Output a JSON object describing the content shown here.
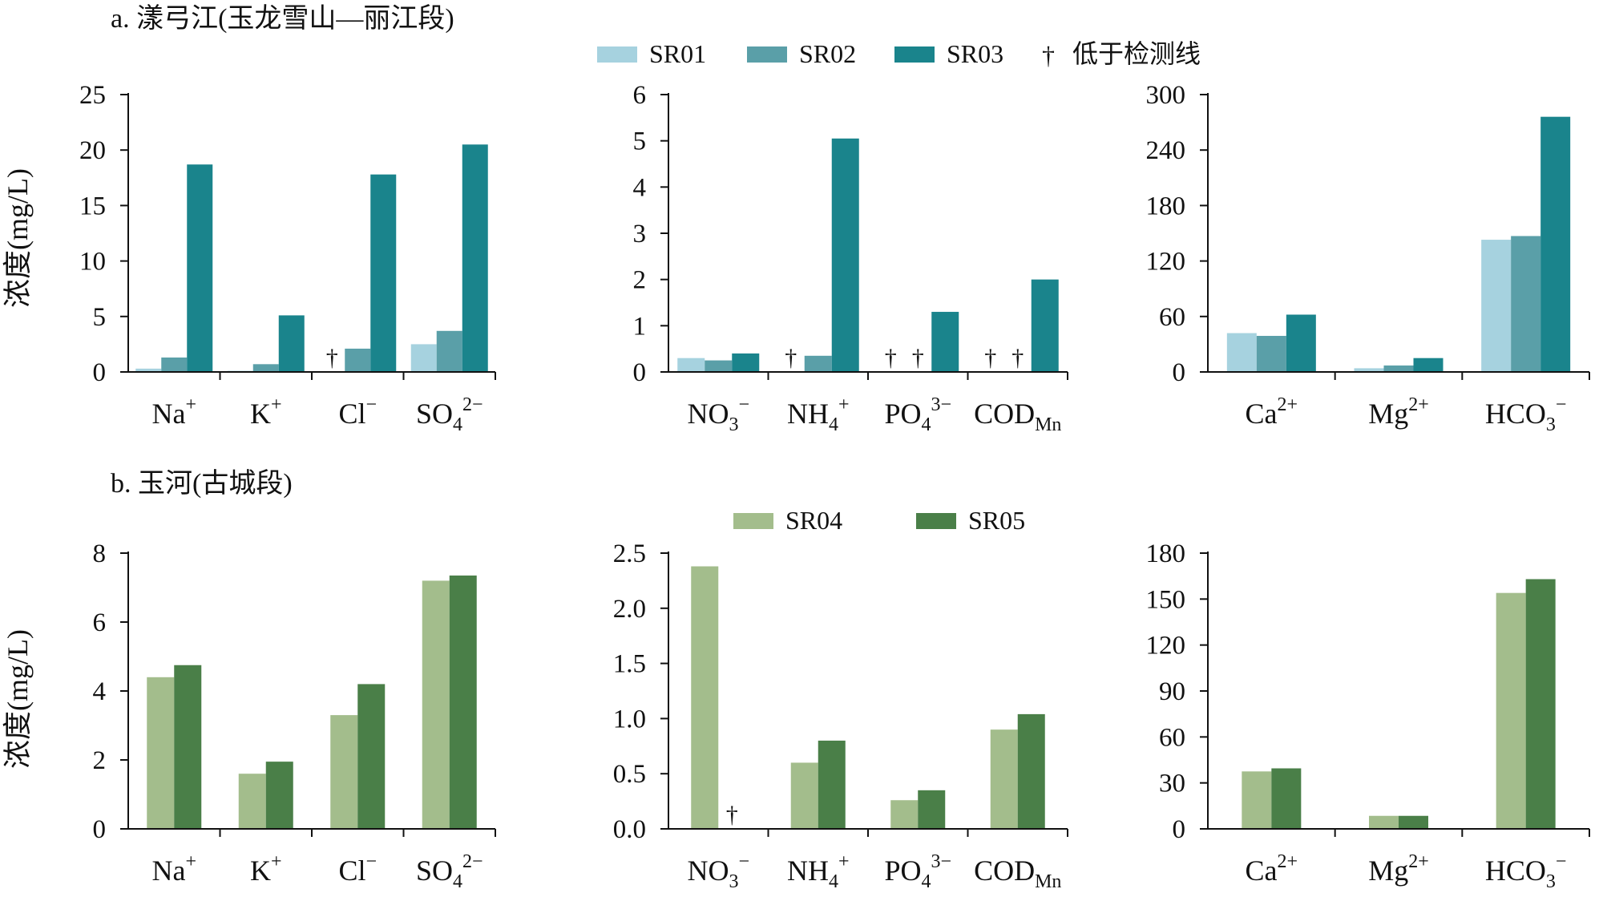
{
  "symbols": {
    "below_detection": "†"
  },
  "colors": {
    "SR01": "#a6d2df",
    "SR02": "#5a9fa8",
    "SR03": "#1a848c",
    "SR04": "#a3bd8c",
    "SR05": "#4a7f48",
    "marker": "#d21a1a",
    "axis": "#111111"
  },
  "panels": [
    {
      "id": "a",
      "title": "a. 漾弓江(玉龙雪山—丽江段)",
      "ylabel": "浓度(mg/L)",
      "legend": [
        {
          "key": "SR01",
          "label": "SR01"
        },
        {
          "key": "SR02",
          "label": "SR02"
        },
        {
          "key": "SR03",
          "label": "SR03"
        },
        {
          "key": "marker",
          "label": "低于检测线"
        }
      ]
    },
    {
      "id": "b",
      "title": "b. 玉河(古城段)",
      "ylabel": "浓度(mg/L)",
      "legend": [
        {
          "key": "SR04",
          "label": "SR04"
        },
        {
          "key": "SR05",
          "label": "SR05"
        }
      ]
    }
  ],
  "chart_data": [
    {
      "panel": "a",
      "type": "bar",
      "title": "",
      "xlabel": "",
      "ylabel": "浓度(mg/L)",
      "categories": [
        {
          "base": "Na",
          "sup": "+"
        },
        {
          "base": "K",
          "sup": "+"
        },
        {
          "base": "Cl",
          "sup": "−"
        },
        {
          "base": "SO",
          "sub": "4",
          "sup": "2−"
        }
      ],
      "ylim": [
        0,
        25
      ],
      "ticks": [
        "0",
        "5",
        "10",
        "15",
        "20",
        "25"
      ],
      "series": [
        {
          "name": "SR01",
          "values": [
            0.3,
            0.1,
            null,
            2.5
          ]
        },
        {
          "name": "SR02",
          "values": [
            1.3,
            0.7,
            2.1,
            3.7
          ]
        },
        {
          "name": "SR03",
          "values": [
            18.7,
            5.1,
            17.8,
            20.5
          ]
        }
      ]
    },
    {
      "panel": "a",
      "type": "bar",
      "title": "",
      "xlabel": "",
      "ylabel": "",
      "categories": [
        {
          "base": "NO",
          "sub": "3",
          "sup": "−"
        },
        {
          "base": "NH",
          "sub": "4",
          "sup": "+"
        },
        {
          "base": "PO",
          "sub": "4",
          "sup": "3−"
        },
        {
          "base": "COD",
          "sub": "Mn"
        }
      ],
      "ylim": [
        0,
        6
      ],
      "ticks": [
        "0",
        "1",
        "2",
        "3",
        "4",
        "5",
        "6"
      ],
      "series": [
        {
          "name": "SR01",
          "values": [
            0.3,
            null,
            null,
            null
          ]
        },
        {
          "name": "SR02",
          "values": [
            0.25,
            0.35,
            null,
            null
          ]
        },
        {
          "name": "SR03",
          "values": [
            0.4,
            5.05,
            1.3,
            2.0
          ]
        }
      ]
    },
    {
      "panel": "a",
      "type": "bar",
      "title": "",
      "xlabel": "",
      "ylabel": "",
      "categories": [
        {
          "base": "Ca",
          "sup": "2+"
        },
        {
          "base": "Mg",
          "sup": "2+"
        },
        {
          "base": "HCO",
          "sub": "3",
          "sup": "−"
        }
      ],
      "ylim": [
        0,
        300
      ],
      "ticks": [
        "0",
        "60",
        "120",
        "180",
        "240",
        "300"
      ],
      "series": [
        {
          "name": "SR01",
          "values": [
            42,
            4,
            143
          ]
        },
        {
          "name": "SR02",
          "values": [
            39,
            7,
            147
          ]
        },
        {
          "name": "SR03",
          "values": [
            62,
            15,
            276
          ]
        }
      ]
    },
    {
      "panel": "b",
      "type": "bar",
      "title": "",
      "xlabel": "",
      "ylabel": "浓度(mg/L)",
      "categories": [
        {
          "base": "Na",
          "sup": "+"
        },
        {
          "base": "K",
          "sup": "+"
        },
        {
          "base": "Cl",
          "sup": "−"
        },
        {
          "base": "SO",
          "sub": "4",
          "sup": "2−"
        }
      ],
      "ylim": [
        0,
        8
      ],
      "ticks": [
        "0",
        "2",
        "4",
        "6",
        "8"
      ],
      "series": [
        {
          "name": "SR04",
          "values": [
            4.4,
            1.6,
            3.3,
            7.2
          ]
        },
        {
          "name": "SR05",
          "values": [
            4.75,
            1.95,
            4.2,
            7.35
          ]
        }
      ]
    },
    {
      "panel": "b",
      "type": "bar",
      "title": "",
      "xlabel": "",
      "ylabel": "",
      "categories": [
        {
          "base": "NO",
          "sub": "3",
          "sup": "−"
        },
        {
          "base": "NH",
          "sub": "4",
          "sup": "+"
        },
        {
          "base": "PO",
          "sub": "4",
          "sup": "3−"
        },
        {
          "base": "COD",
          "sub": "Mn"
        }
      ],
      "ylim": [
        0,
        2.5
      ],
      "ticks": [
        "0.0",
        "0.5",
        "1.0",
        "1.5",
        "2.0",
        "2.5"
      ],
      "series": [
        {
          "name": "SR04",
          "values": [
            2.38,
            0.6,
            0.26,
            0.9
          ]
        },
        {
          "name": "SR05",
          "values": [
            null,
            0.8,
            0.35,
            1.04
          ]
        }
      ]
    },
    {
      "panel": "b",
      "type": "bar",
      "title": "",
      "xlabel": "",
      "ylabel": "",
      "categories": [
        {
          "base": "Ca",
          "sup": "2+"
        },
        {
          "base": "Mg",
          "sup": "2+"
        },
        {
          "base": "HCO",
          "sub": "3",
          "sup": "−"
        }
      ],
      "ylim": [
        0,
        180
      ],
      "ticks": [
        "0",
        "30",
        "60",
        "90",
        "120",
        "150",
        "180"
      ],
      "series": [
        {
          "name": "SR04",
          "values": [
            37.5,
            8.5,
            154
          ]
        },
        {
          "name": "SR05",
          "values": [
            39.5,
            8.5,
            163
          ]
        }
      ]
    }
  ]
}
